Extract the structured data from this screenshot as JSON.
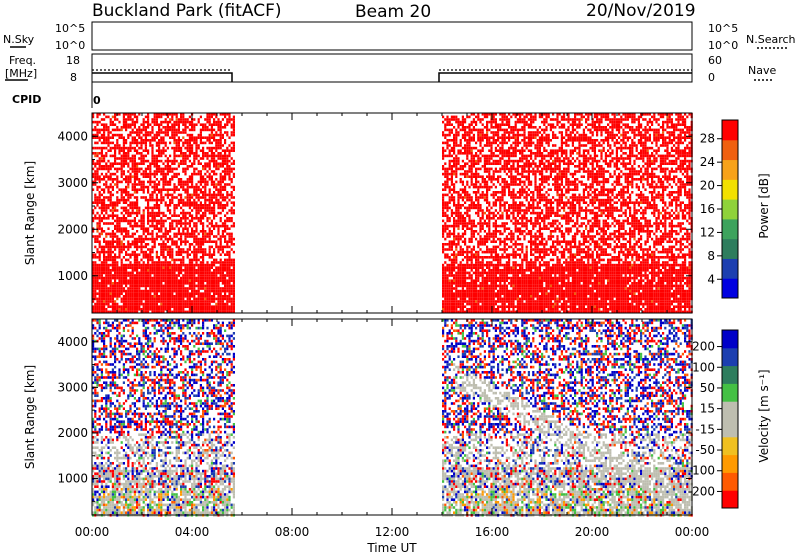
{
  "header": {
    "station": "Buckland Park (fitACF)",
    "beam": "Beam 20",
    "date": "20/Nov/2019"
  },
  "top_panels": {
    "nsky_label": "N.Sky",
    "nsky_ticks": [
      "10^5",
      "10^0"
    ],
    "nsearch_ticks": [
      "10^5",
      "10^0"
    ],
    "nsearch_label": "N.Search",
    "freq_label_line1": "Freq.",
    "freq_label_line2": "[MHz]",
    "freq_ticks": [
      "18",
      "8"
    ],
    "nave_ticks": [
      "60",
      "0"
    ],
    "nave_label": "Nave",
    "cpid_label": "CPID",
    "cpid_value": "0"
  },
  "colors": {
    "power_scale": [
      "#0000e0",
      "#1c3fb0",
      "#2e7d5e",
      "#3da35d",
      "#8fd23a",
      "#f2e000",
      "#f7a21a",
      "#f06010",
      "#ff0000"
    ],
    "velocity_scale": [
      "#ff0000",
      "#ff5a00",
      "#ff9a00",
      "#f0c020",
      "#bebeb0",
      "#bebeb0",
      "#44c044",
      "#2e7d5e",
      "#1c3fb0",
      "#0000c8"
    ],
    "ground_scatter": "#bebeb0"
  },
  "chart_data": [
    {
      "type": "heatmap",
      "name": "power",
      "ylabel": "Slant Range [km]",
      "y_ticks": [
        1000,
        2000,
        3000,
        4000
      ],
      "ylim": [
        200,
        4500
      ],
      "xlim_hours": [
        0,
        24
      ],
      "x_ticks": [
        "00:00",
        "04:00",
        "08:00",
        "12:00",
        "16:00",
        "20:00",
        "00:00"
      ],
      "data_segments_hours": [
        [
          0,
          5.7
        ],
        [
          14.0,
          24.0
        ]
      ],
      "colorbar": {
        "label": "Power [dB]",
        "ticks": [
          "28",
          "24",
          "20",
          "16",
          "12",
          "8",
          "4"
        ],
        "range": [
          0,
          30
        ]
      }
    },
    {
      "type": "heatmap",
      "name": "velocity",
      "ylabel": "Slant Range [km]",
      "y_ticks": [
        1000,
        2000,
        3000,
        4000
      ],
      "ylim": [
        200,
        4500
      ],
      "xlim_hours": [
        0,
        24
      ],
      "x_ticks": [
        "00:00",
        "04:00",
        "08:00",
        "12:00",
        "16:00",
        "20:00",
        "00:00"
      ],
      "xlabel": "Time UT",
      "data_segments_hours": [
        [
          0,
          5.7
        ],
        [
          14.0,
          24.0
        ]
      ],
      "colorbar": {
        "label": "Velocity [m s⁻¹]",
        "ticks": [
          "200",
          "100",
          "50",
          "15",
          "-15",
          "-50",
          "-100",
          "-200"
        ],
        "range": [
          -250,
          250
        ]
      }
    }
  ]
}
